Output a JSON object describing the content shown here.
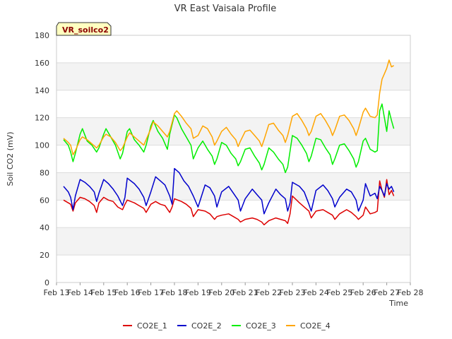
{
  "chart_data": {
    "type": "line",
    "title": "VR East Vaisala Profile",
    "xlabel": "Time",
    "ylabel": "Soil CO2 (mV)",
    "badge": "VR_soilco2",
    "ylim": [
      0,
      180
    ],
    "yticks": [
      0,
      20,
      40,
      60,
      80,
      100,
      120,
      140,
      160,
      180
    ],
    "xlim": [
      13,
      28
    ],
    "xticks": [
      {
        "value": 13,
        "label": "Feb 13"
      },
      {
        "value": 14,
        "label": "Feb 14"
      },
      {
        "value": 15,
        "label": "Feb 15"
      },
      {
        "value": 16,
        "label": "Feb 16"
      },
      {
        "value": 17,
        "label": "Feb 17"
      },
      {
        "value": 18,
        "label": "Feb 18"
      },
      {
        "value": 19,
        "label": "Feb 19"
      },
      {
        "value": 20,
        "label": "Feb 20"
      },
      {
        "value": 21,
        "label": "Feb 21"
      },
      {
        "value": 22,
        "label": "Feb 22"
      },
      {
        "value": 23,
        "label": "Feb 23"
      },
      {
        "value": 24,
        "label": "Feb 24"
      },
      {
        "value": 25,
        "label": "Feb 25"
      },
      {
        "value": 26,
        "label": "Feb 26"
      },
      {
        "value": 27,
        "label": "Feb 27"
      },
      {
        "value": 28,
        "label": "Feb 28"
      }
    ],
    "grid": true,
    "legend_position": "bottom",
    "series": [
      {
        "name": "CO2E_1",
        "color": "#dd0000",
        "x": [
          13.3,
          13.5,
          13.6,
          13.7,
          13.8,
          14.0,
          14.2,
          14.4,
          14.6,
          14.7,
          14.8,
          15.0,
          15.2,
          15.4,
          15.6,
          15.8,
          15.9,
          16.0,
          16.3,
          16.5,
          16.7,
          16.8,
          17.0,
          17.2,
          17.4,
          17.6,
          17.8,
          17.9,
          18.0,
          18.3,
          18.5,
          18.7,
          18.8,
          19.0,
          19.3,
          19.5,
          19.7,
          19.8,
          20.0,
          20.3,
          20.5,
          20.7,
          20.8,
          21.0,
          21.3,
          21.5,
          21.7,
          21.8,
          22.0,
          22.3,
          22.5,
          22.7,
          22.8,
          22.9,
          23.0,
          23.3,
          23.5,
          23.7,
          23.8,
          24.0,
          24.3,
          24.5,
          24.7,
          24.8,
          25.0,
          25.3,
          25.5,
          25.7,
          25.8,
          26.0,
          26.1,
          26.3,
          26.5,
          26.6,
          26.7,
          26.8,
          26.9,
          27.0,
          27.1,
          27.2,
          27.3
        ],
        "y": [
          60,
          58,
          57,
          52,
          58,
          62,
          61,
          59,
          56,
          51,
          58,
          62,
          60,
          59,
          55,
          53,
          57,
          60,
          58,
          56,
          54,
          51,
          57,
          59,
          57,
          56,
          51,
          55,
          61,
          59,
          57,
          54,
          48,
          53,
          52,
          50,
          46,
          48,
          49,
          50,
          48,
          46,
          44,
          46,
          47,
          46,
          44,
          42,
          45,
          47,
          46,
          45,
          43,
          50,
          63,
          58,
          55,
          52,
          47,
          52,
          53,
          51,
          49,
          46,
          50,
          53,
          51,
          48,
          46,
          49,
          55,
          50,
          51,
          52,
          74,
          67,
          62,
          75,
          64,
          67,
          63
        ]
      },
      {
        "name": "CO2E_2",
        "color": "#0000cc",
        "x": [
          13.3,
          13.5,
          13.6,
          13.7,
          13.8,
          14.0,
          14.2,
          14.4,
          14.6,
          14.7,
          14.8,
          15.0,
          15.2,
          15.4,
          15.6,
          15.8,
          15.9,
          16.0,
          16.3,
          16.5,
          16.7,
          16.8,
          17.0,
          17.2,
          17.4,
          17.6,
          17.8,
          17.9,
          18.0,
          18.2,
          18.4,
          18.6,
          18.8,
          19.0,
          19.3,
          19.5,
          19.7,
          19.8,
          20.0,
          20.3,
          20.5,
          20.7,
          20.8,
          21.0,
          21.3,
          21.5,
          21.7,
          21.8,
          22.0,
          22.3,
          22.5,
          22.7,
          22.8,
          22.9,
          23.0,
          23.3,
          23.5,
          23.7,
          23.8,
          24.0,
          24.3,
          24.5,
          24.7,
          24.8,
          25.0,
          25.3,
          25.5,
          25.7,
          25.8,
          26.0,
          26.1,
          26.3,
          26.5,
          26.6,
          26.7,
          26.8,
          26.9,
          27.0,
          27.1,
          27.2,
          27.3
        ],
        "y": [
          70,
          66,
          62,
          53,
          63,
          75,
          73,
          70,
          66,
          59,
          65,
          75,
          72,
          68,
          63,
          56,
          62,
          76,
          72,
          68,
          62,
          56,
          66,
          77,
          74,
          71,
          63,
          57,
          83,
          80,
          74,
          70,
          63,
          55,
          71,
          69,
          63,
          55,
          66,
          70,
          65,
          60,
          52,
          61,
          68,
          64,
          60,
          50,
          58,
          68,
          64,
          61,
          52,
          58,
          73,
          70,
          66,
          57,
          52,
          67,
          71,
          67,
          61,
          55,
          62,
          68,
          66,
          60,
          52,
          60,
          72,
          63,
          65,
          61,
          70,
          67,
          63,
          72,
          68,
          70,
          66
        ]
      },
      {
        "name": "CO2E_3",
        "color": "#00ee00",
        "x": [
          13.3,
          13.5,
          13.6,
          13.7,
          13.8,
          14.0,
          14.1,
          14.3,
          14.5,
          14.7,
          14.8,
          15.0,
          15.1,
          15.3,
          15.5,
          15.7,
          15.8,
          16.0,
          16.1,
          16.3,
          16.5,
          16.7,
          16.8,
          17.0,
          17.1,
          17.3,
          17.5,
          17.7,
          17.8,
          18.0,
          18.1,
          18.3,
          18.5,
          18.7,
          18.8,
          19.0,
          19.2,
          19.4,
          19.6,
          19.7,
          19.8,
          20.0,
          20.2,
          20.4,
          20.6,
          20.7,
          20.8,
          21.0,
          21.2,
          21.4,
          21.6,
          21.7,
          21.8,
          22.0,
          22.2,
          22.4,
          22.6,
          22.7,
          22.8,
          23.0,
          23.2,
          23.4,
          23.6,
          23.7,
          23.8,
          24.0,
          24.2,
          24.4,
          24.6,
          24.7,
          24.8,
          25.0,
          25.2,
          25.4,
          25.6,
          25.7,
          25.8,
          26.0,
          26.1,
          26.3,
          26.5,
          26.6,
          26.7,
          26.8,
          26.9,
          27.0,
          27.1,
          27.2,
          27.3
        ],
        "y": [
          104,
          100,
          95,
          88,
          94,
          108,
          112,
          103,
          100,
          95,
          98,
          108,
          112,
          106,
          100,
          90,
          94,
          110,
          112,
          104,
          100,
          95,
          100,
          114,
          118,
          110,
          105,
          97,
          108,
          122,
          120,
          112,
          106,
          100,
          90,
          98,
          103,
          97,
          92,
          86,
          90,
          102,
          100,
          94,
          90,
          85,
          88,
          97,
          98,
          92,
          87,
          82,
          86,
          98,
          95,
          90,
          86,
          80,
          84,
          107,
          105,
          100,
          94,
          88,
          92,
          105,
          104,
          98,
          93,
          86,
          90,
          100,
          101,
          96,
          90,
          84,
          88,
          103,
          105,
          97,
          95,
          96,
          125,
          130,
          120,
          110,
          125,
          118,
          112
        ]
      },
      {
        "name": "CO2E_4",
        "color": "#ffa500",
        "x": [
          13.3,
          13.5,
          13.6,
          13.7,
          13.8,
          14.0,
          14.1,
          14.3,
          14.5,
          14.7,
          14.8,
          15.0,
          15.1,
          15.3,
          15.5,
          15.7,
          15.8,
          16.0,
          16.1,
          16.3,
          16.5,
          16.7,
          16.8,
          17.0,
          17.1,
          17.3,
          17.5,
          17.7,
          17.8,
          18.0,
          18.1,
          18.3,
          18.5,
          18.7,
          18.8,
          19.0,
          19.2,
          19.4,
          19.6,
          19.7,
          19.8,
          20.0,
          20.2,
          20.4,
          20.6,
          20.7,
          20.8,
          21.0,
          21.2,
          21.4,
          21.6,
          21.7,
          21.8,
          22.0,
          22.2,
          22.4,
          22.6,
          22.7,
          22.8,
          23.0,
          23.2,
          23.4,
          23.6,
          23.7,
          23.8,
          24.0,
          24.2,
          24.4,
          24.6,
          24.7,
          24.8,
          25.0,
          25.2,
          25.4,
          25.6,
          25.7,
          25.8,
          26.0,
          26.1,
          26.3,
          26.5,
          26.6,
          26.7,
          26.8,
          26.9,
          27.0,
          27.1,
          27.2,
          27.3
        ],
        "y": [
          105,
          102,
          100,
          93,
          96,
          104,
          106,
          104,
          101,
          98,
          100,
          106,
          108,
          106,
          102,
          96,
          98,
          106,
          109,
          106,
          103,
          100,
          104,
          112,
          117,
          114,
          110,
          106,
          110,
          123,
          125,
          121,
          116,
          112,
          105,
          107,
          114,
          112,
          106,
          100,
          103,
          110,
          113,
          108,
          104,
          99,
          103,
          110,
          111,
          107,
          103,
          99,
          104,
          115,
          116,
          111,
          107,
          102,
          107,
          121,
          123,
          118,
          112,
          107,
          110,
          121,
          123,
          118,
          112,
          107,
          111,
          121,
          122,
          118,
          112,
          107,
          112,
          124,
          127,
          121,
          120,
          122,
          138,
          148,
          152,
          156,
          162,
          157,
          158
        ]
      }
    ]
  }
}
